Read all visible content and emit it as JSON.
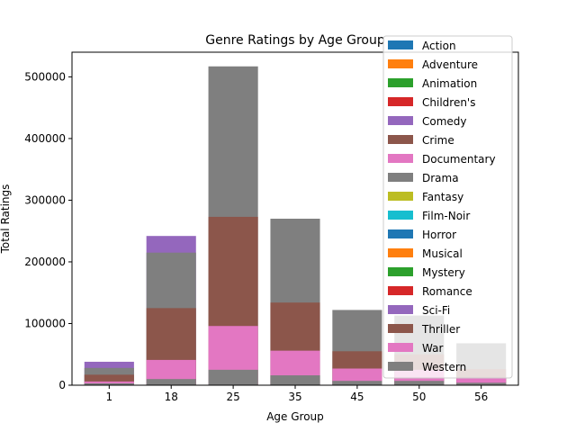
{
  "chart_data": {
    "type": "bar",
    "title": "Genre Ratings by Age Group",
    "xlabel": "Age Group",
    "ylabel": "Total Ratings",
    "categories": [
      "1",
      "18",
      "25",
      "35",
      "45",
      "50",
      "56"
    ],
    "ylim": [
      0,
      540000
    ],
    "yticks": [
      0,
      100000,
      200000,
      300000,
      400000,
      500000
    ],
    "ytick_labels": [
      "0",
      "100000",
      "200000",
      "300000",
      "400000",
      "500000"
    ],
    "grid": false,
    "legend_position": "top-right",
    "legend": [
      {
        "name": "Action",
        "color": "#1f77b4"
      },
      {
        "name": "Adventure",
        "color": "#ff7f0e"
      },
      {
        "name": "Animation",
        "color": "#2ca02c"
      },
      {
        "name": "Children's",
        "color": "#d62728"
      },
      {
        "name": "Comedy",
        "color": "#9467bd"
      },
      {
        "name": "Crime",
        "color": "#8c564b"
      },
      {
        "name": "Documentary",
        "color": "#e377c2"
      },
      {
        "name": "Drama",
        "color": "#7f7f7f"
      },
      {
        "name": "Fantasy",
        "color": "#bcbd22"
      },
      {
        "name": "Film-Noir",
        "color": "#17becf"
      },
      {
        "name": "Horror",
        "color": "#1f77b4"
      },
      {
        "name": "Musical",
        "color": "#ff7f0e"
      },
      {
        "name": "Mystery",
        "color": "#2ca02c"
      },
      {
        "name": "Romance",
        "color": "#d62728"
      },
      {
        "name": "Sci-Fi",
        "color": "#9467bd"
      },
      {
        "name": "Thriller",
        "color": "#8c564b"
      },
      {
        "name": "War",
        "color": "#e377c2"
      },
      {
        "name": "Western",
        "color": "#7f7f7f"
      }
    ],
    "visible_bars": [
      {
        "category": "1",
        "stack": [
          {
            "series": "Western",
            "value": 3000,
            "color": "#7f7f7f"
          },
          {
            "series": "War",
            "value": 6000,
            "color": "#e377c2"
          },
          {
            "series": "Thriller",
            "value": 17000,
            "color": "#8c564b"
          },
          {
            "series": "Drama",
            "value": 28000,
            "color": "#7f7f7f"
          },
          {
            "series": "Sci-Fi",
            "value": 38000,
            "color": "#9467bd"
          }
        ]
      },
      {
        "category": "18",
        "stack": [
          {
            "series": "Western",
            "value": 10000,
            "color": "#7f7f7f"
          },
          {
            "series": "War",
            "value": 41000,
            "color": "#e377c2"
          },
          {
            "series": "Thriller",
            "value": 125000,
            "color": "#8c564b"
          },
          {
            "series": "Drama",
            "value": 215000,
            "color": "#7f7f7f"
          },
          {
            "series": "Sci-Fi",
            "value": 242000,
            "color": "#9467bd"
          }
        ]
      },
      {
        "category": "25",
        "stack": [
          {
            "series": "Western",
            "value": 25000,
            "color": "#7f7f7f"
          },
          {
            "series": "War",
            "value": 96000,
            "color": "#e377c2"
          },
          {
            "series": "Thriller",
            "value": 273000,
            "color": "#8c564b"
          },
          {
            "series": "Drama",
            "value": 517000,
            "color": "#7f7f7f"
          }
        ]
      },
      {
        "category": "35",
        "stack": [
          {
            "series": "Western",
            "value": 16000,
            "color": "#7f7f7f"
          },
          {
            "series": "War",
            "value": 56000,
            "color": "#e377c2"
          },
          {
            "series": "Thriller",
            "value": 134000,
            "color": "#8c564b"
          },
          {
            "series": "Drama",
            "value": 270000,
            "color": "#7f7f7f"
          }
        ]
      },
      {
        "category": "45",
        "stack": [
          {
            "series": "Western",
            "value": 7000,
            "color": "#7f7f7f"
          },
          {
            "series": "War",
            "value": 27000,
            "color": "#e377c2"
          },
          {
            "series": "Thriller",
            "value": 55000,
            "color": "#8c564b"
          },
          {
            "series": "Drama",
            "value": 122000,
            "color": "#7f7f7f"
          }
        ]
      },
      {
        "category": "50",
        "stack": [
          {
            "series": "Western",
            "value": 7000,
            "color": "#7f7f7f"
          },
          {
            "series": "War",
            "value": 25000,
            "color": "#e377c2"
          },
          {
            "series": "Thriller",
            "value": 50000,
            "color": "#8c564b"
          },
          {
            "series": "Drama",
            "value": 113000,
            "color": "#7f7f7f"
          }
        ]
      },
      {
        "category": "56",
        "stack": [
          {
            "series": "Western",
            "value": 4000,
            "color": "#7f7f7f"
          },
          {
            "series": "War",
            "value": 11000,
            "color": "#e377c2"
          },
          {
            "series": "Thriller",
            "value": 26000,
            "color": "#8c564b"
          },
          {
            "series": "Drama",
            "value": 68000,
            "color": "#7f7f7f"
          }
        ]
      }
    ]
  }
}
